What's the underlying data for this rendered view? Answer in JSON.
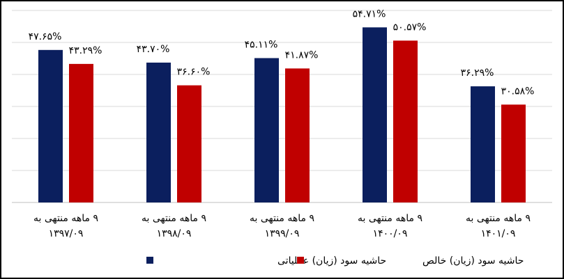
{
  "chart_data": {
    "type": "bar",
    "categories": [
      [
        "۹ ماهه منتهی به",
        "۱۳۹۷/۰۹"
      ],
      [
        "۹ ماهه منتهی به",
        "۱۳۹۸/۰۹"
      ],
      [
        "۹ ماهه منتهی به",
        "۱۳۹۹/۰۹"
      ],
      [
        "۹ ماهه منتهی به",
        "۱۴۰۰/۰۹"
      ],
      [
        "۹ ماهه منتهی به",
        "۱۴۰۱/۰۹"
      ]
    ],
    "series": [
      {
        "name": "حاشیه سود (زیان) عملیاتی",
        "color": "#0b1f5e",
        "values": [
          47.65,
          43.7,
          45.11,
          54.71,
          36.29
        ],
        "labels": [
          "۴۷.۶۵%",
          "۴۳.۷۰%",
          "۴۵.۱۱%",
          "۵۴.۷۱%",
          "۳۶.۲۹%"
        ]
      },
      {
        "name": "حاشیه سود (زیان) خالص",
        "color": "#c00000",
        "values": [
          43.29,
          36.6,
          41.87,
          50.57,
          30.58
        ],
        "labels": [
          "۴۳.۲۹%",
          "۳۶.۶۰%",
          "۴۱.۸۷%",
          "۵۰.۵۷%",
          "۳۰.۵۸%"
        ]
      }
    ],
    "ylim": [
      0,
      60
    ],
    "grid": true,
    "legend_position": "bottom",
    "gridline_color": "#d9d9d9"
  }
}
